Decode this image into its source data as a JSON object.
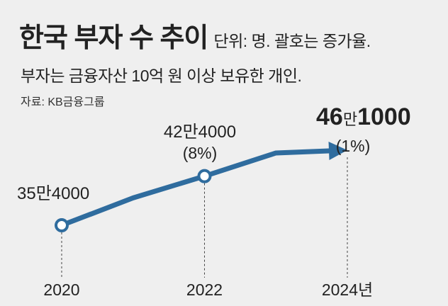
{
  "title": "한국 부자 수 추이",
  "unit_note": "단위: 명. 괄호는 증가율.",
  "subtitle": "부자는 금융자산 10억 원 이상 보유한 개인.",
  "source": "자료: KB금융그룹",
  "colors": {
    "line": "#2f6c9e",
    "marker_fill": "#ffffff",
    "background": "#efefef",
    "text": "#222222"
  },
  "chart_data": {
    "type": "line",
    "x": [
      "2020",
      "2021",
      "2022",
      "2023",
      "2024"
    ],
    "y": [
      354000,
      393000,
      424000,
      457000,
      461000
    ],
    "x_tick_labels": [
      "2020",
      "2022",
      "2024년"
    ],
    "annotations": [
      {
        "x": "2020",
        "value_label": "35만4000",
        "change_label": ""
      },
      {
        "x": "2022",
        "value_label": "42만4000",
        "change_label": "(8%)"
      },
      {
        "x": "2024",
        "value_label": "46만1000",
        "change_label": "(1%)"
      }
    ],
    "markers": [
      "2020",
      "2022"
    ],
    "arrow_end": "2024",
    "grid": false,
    "legend": "none"
  }
}
